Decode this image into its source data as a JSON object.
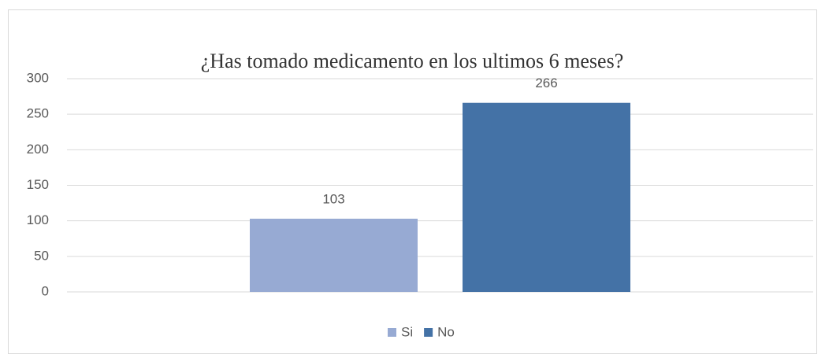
{
  "chart_data": {
    "type": "bar",
    "title": "¿Has tomado medicamento en los ultimos 6 meses?",
    "categories": [
      null
    ],
    "series": [
      {
        "name": "Si",
        "color": "#97aad3",
        "values": [
          103
        ]
      },
      {
        "name": "No",
        "color": "#4472a6",
        "values": [
          266
        ]
      }
    ],
    "ylim": [
      0,
      300
    ],
    "yticks": [
      0,
      50,
      100,
      150,
      200,
      250,
      300
    ],
    "grid": true,
    "legend": "bottom"
  }
}
